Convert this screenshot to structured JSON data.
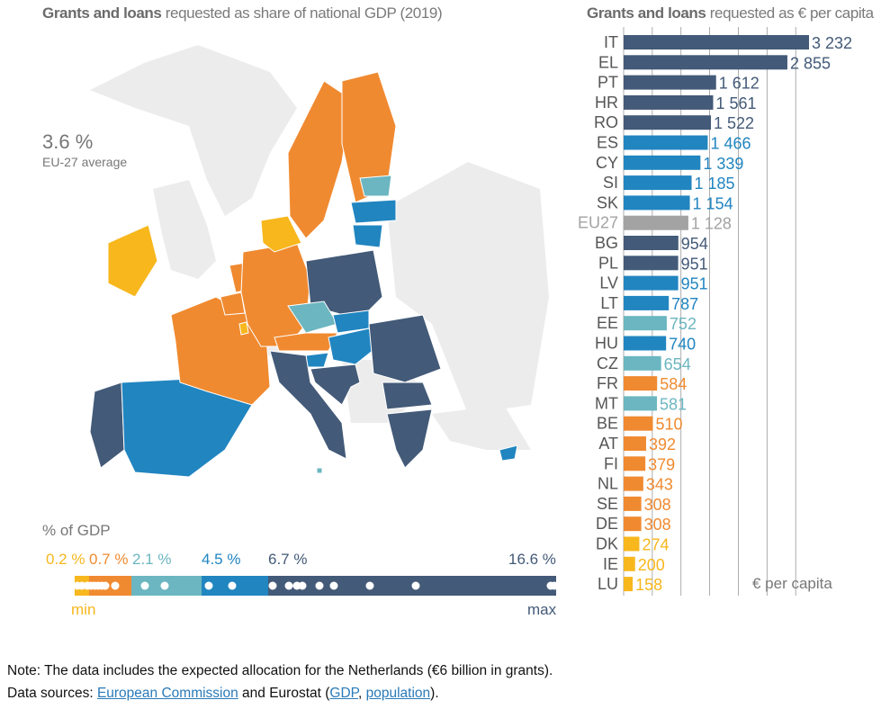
{
  "colors": {
    "dark": "#435a78",
    "blue": "#2185c0",
    "teal": "#6bb6c0",
    "orange": "#f08a30",
    "yellow": "#f7b71d",
    "gray": "#a3a3a3",
    "nonEU": "#ececec"
  },
  "chart_data": [
    {
      "type": "map",
      "title_bold": "Grants and loans",
      "title_rest": "requested as share of national GDP (2019)",
      "average_value": "3.6 %",
      "average_label": "EU-27 average",
      "legend": {
        "title": "% of GDP",
        "thresholds": [
          "0.2 %",
          "0.7 %",
          "2.1 %",
          "4.5 %",
          "6.7 %",
          "16.6 %"
        ],
        "min_label": "min",
        "max_label": "max",
        "classes": [
          "yellow",
          "orange",
          "teal",
          "blue",
          "dark"
        ]
      },
      "country_class": {
        "IT": "dark",
        "EL": "dark",
        "PT": "dark",
        "HR": "dark",
        "RO": "dark",
        "BG": "dark",
        "PL": "dark",
        "ES": "blue",
        "CY": "blue",
        "SI": "blue",
        "SK": "blue",
        "LV": "blue",
        "LT": "blue",
        "HU": "blue",
        "EE": "teal",
        "CZ": "teal",
        "MT": "teal",
        "FR": "orange",
        "BE": "orange",
        "AT": "orange",
        "FI": "orange",
        "NL": "orange",
        "SE": "orange",
        "DE": "orange",
        "DK": "yellow",
        "IE": "yellow",
        "LU": "yellow"
      }
    },
    {
      "type": "bar",
      "orientation": "horizontal",
      "title_bold": "Grants and loans",
      "title_rest": "requested as € per capita",
      "xlabel": "€ per capita",
      "grid": true,
      "xlim": [
        0,
        3500
      ],
      "categories": [
        "IT",
        "EL",
        "PT",
        "HR",
        "RO",
        "ES",
        "CY",
        "SI",
        "SK",
        "EU27",
        "BG",
        "PL",
        "LV",
        "LT",
        "EE",
        "HU",
        "CZ",
        "FR",
        "MT",
        "BE",
        "AT",
        "FI",
        "NL",
        "SE",
        "DE",
        "DK",
        "IE",
        "LU"
      ],
      "values": [
        3232,
        2855,
        1612,
        1561,
        1522,
        1466,
        1339,
        1185,
        1154,
        1128,
        954,
        951,
        951,
        787,
        752,
        740,
        654,
        584,
        581,
        510,
        392,
        379,
        343,
        308,
        308,
        274,
        200,
        158
      ],
      "labels": [
        "3 232",
        "2 855",
        "1 612",
        "1 561",
        "1 522",
        "1 466",
        "1 339",
        "1 185",
        "1 154",
        "1 128",
        "954",
        "951",
        "951",
        "787",
        "752",
        "740",
        "654",
        "584",
        "581",
        "510",
        "392",
        "379",
        "343",
        "308",
        "308",
        "274",
        "200",
        "158"
      ],
      "classes": [
        "dark",
        "dark",
        "dark",
        "dark",
        "dark",
        "blue",
        "blue",
        "blue",
        "blue",
        "gray",
        "dark",
        "dark",
        "blue",
        "blue",
        "teal",
        "blue",
        "teal",
        "orange",
        "teal",
        "orange",
        "orange",
        "orange",
        "orange",
        "orange",
        "orange",
        "yellow",
        "yellow",
        "yellow"
      ]
    }
  ],
  "note": {
    "line1": "Note: The data includes the expected allocation for the Netherlands (€6 billion in grants).",
    "sources_prefix": "Data sources: ",
    "link1": "European Commission",
    "mid": " and Eurostat (",
    "link2": "GDP",
    "comma": ", ",
    "link3": "population",
    "end": ")."
  }
}
